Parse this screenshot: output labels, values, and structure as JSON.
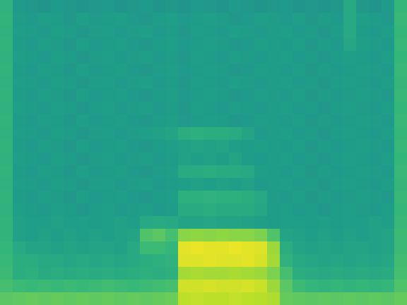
{
  "chart_data": {
    "type": "heatmap",
    "tick_labels": false,
    "zlim": [
      0,
      1
    ],
    "cells": [
      [
        0.64,
        0.54,
        0.53,
        0.52,
        0.54,
        0.53,
        0.52,
        0.53,
        0.54,
        0.52,
        0.53,
        0.54,
        0.52,
        0.53,
        0.52,
        0.54,
        0.53,
        0.52,
        0.54,
        0.53,
        0.52,
        0.53,
        0.54,
        0.52,
        0.53,
        0.52,
        0.53,
        0.6,
        0.53,
        0.52,
        0.54,
        0.66
      ],
      [
        0.65,
        0.55,
        0.54,
        0.56,
        0.55,
        0.53,
        0.56,
        0.54,
        0.55,
        0.56,
        0.54,
        0.53,
        0.55,
        0.56,
        0.54,
        0.55,
        0.56,
        0.55,
        0.53,
        0.54,
        0.56,
        0.55,
        0.54,
        0.56,
        0.53,
        0.55,
        0.54,
        0.6,
        0.56,
        0.55,
        0.54,
        0.67
      ],
      [
        0.64,
        0.56,
        0.55,
        0.54,
        0.56,
        0.55,
        0.53,
        0.55,
        0.56,
        0.54,
        0.55,
        0.56,
        0.54,
        0.55,
        0.53,
        0.56,
        0.55,
        0.54,
        0.56,
        0.55,
        0.54,
        0.55,
        0.56,
        0.54,
        0.55,
        0.53,
        0.55,
        0.6,
        0.55,
        0.54,
        0.56,
        0.66
      ],
      [
        0.65,
        0.55,
        0.54,
        0.56,
        0.55,
        0.53,
        0.56,
        0.54,
        0.55,
        0.56,
        0.54,
        0.53,
        0.55,
        0.56,
        0.54,
        0.55,
        0.56,
        0.55,
        0.53,
        0.54,
        0.56,
        0.55,
        0.54,
        0.56,
        0.53,
        0.55,
        0.54,
        0.59,
        0.56,
        0.55,
        0.54,
        0.67
      ],
      [
        0.64,
        0.56,
        0.55,
        0.54,
        0.56,
        0.55,
        0.53,
        0.55,
        0.56,
        0.54,
        0.55,
        0.56,
        0.54,
        0.55,
        0.53,
        0.56,
        0.55,
        0.54,
        0.56,
        0.55,
        0.54,
        0.55,
        0.56,
        0.54,
        0.55,
        0.53,
        0.55,
        0.56,
        0.55,
        0.54,
        0.56,
        0.66
      ],
      [
        0.65,
        0.55,
        0.54,
        0.56,
        0.55,
        0.53,
        0.56,
        0.54,
        0.55,
        0.56,
        0.54,
        0.53,
        0.55,
        0.56,
        0.54,
        0.55,
        0.56,
        0.55,
        0.53,
        0.54,
        0.56,
        0.55,
        0.54,
        0.56,
        0.53,
        0.55,
        0.54,
        0.55,
        0.56,
        0.55,
        0.54,
        0.67
      ],
      [
        0.64,
        0.56,
        0.55,
        0.54,
        0.56,
        0.55,
        0.53,
        0.55,
        0.56,
        0.54,
        0.55,
        0.56,
        0.54,
        0.55,
        0.53,
        0.56,
        0.55,
        0.54,
        0.56,
        0.55,
        0.54,
        0.55,
        0.56,
        0.54,
        0.55,
        0.53,
        0.55,
        0.56,
        0.55,
        0.54,
        0.56,
        0.66
      ],
      [
        0.65,
        0.55,
        0.54,
        0.56,
        0.55,
        0.53,
        0.56,
        0.54,
        0.55,
        0.56,
        0.54,
        0.53,
        0.55,
        0.56,
        0.54,
        0.55,
        0.56,
        0.55,
        0.53,
        0.54,
        0.56,
        0.55,
        0.54,
        0.56,
        0.53,
        0.55,
        0.54,
        0.55,
        0.56,
        0.55,
        0.54,
        0.67
      ],
      [
        0.64,
        0.56,
        0.55,
        0.54,
        0.56,
        0.55,
        0.53,
        0.55,
        0.56,
        0.54,
        0.55,
        0.56,
        0.54,
        0.55,
        0.53,
        0.56,
        0.55,
        0.54,
        0.56,
        0.55,
        0.54,
        0.55,
        0.56,
        0.54,
        0.55,
        0.53,
        0.55,
        0.56,
        0.55,
        0.54,
        0.56,
        0.66
      ],
      [
        0.65,
        0.55,
        0.54,
        0.56,
        0.55,
        0.53,
        0.56,
        0.54,
        0.55,
        0.56,
        0.54,
        0.53,
        0.55,
        0.56,
        0.54,
        0.55,
        0.56,
        0.55,
        0.53,
        0.54,
        0.56,
        0.55,
        0.54,
        0.56,
        0.53,
        0.55,
        0.54,
        0.55,
        0.56,
        0.55,
        0.54,
        0.67
      ],
      [
        0.64,
        0.56,
        0.55,
        0.54,
        0.56,
        0.55,
        0.53,
        0.55,
        0.56,
        0.54,
        0.55,
        0.56,
        0.57,
        0.58,
        0.62,
        0.63,
        0.62,
        0.62,
        0.61,
        0.58,
        0.54,
        0.55,
        0.56,
        0.54,
        0.55,
        0.53,
        0.55,
        0.56,
        0.55,
        0.54,
        0.56,
        0.66
      ],
      [
        0.65,
        0.55,
        0.54,
        0.56,
        0.55,
        0.53,
        0.56,
        0.54,
        0.55,
        0.56,
        0.54,
        0.53,
        0.55,
        0.56,
        0.57,
        0.58,
        0.57,
        0.58,
        0.56,
        0.55,
        0.56,
        0.55,
        0.54,
        0.56,
        0.53,
        0.55,
        0.54,
        0.55,
        0.56,
        0.55,
        0.54,
        0.67
      ],
      [
        0.64,
        0.56,
        0.55,
        0.54,
        0.56,
        0.55,
        0.53,
        0.55,
        0.56,
        0.54,
        0.55,
        0.56,
        0.54,
        0.55,
        0.57,
        0.56,
        0.57,
        0.56,
        0.58,
        0.55,
        0.54,
        0.55,
        0.56,
        0.54,
        0.55,
        0.53,
        0.55,
        0.56,
        0.55,
        0.54,
        0.56,
        0.66
      ],
      [
        0.65,
        0.55,
        0.54,
        0.56,
        0.55,
        0.53,
        0.56,
        0.54,
        0.55,
        0.56,
        0.54,
        0.53,
        0.55,
        0.56,
        0.61,
        0.61,
        0.62,
        0.61,
        0.61,
        0.6,
        0.56,
        0.55,
        0.54,
        0.56,
        0.53,
        0.55,
        0.54,
        0.55,
        0.56,
        0.55,
        0.54,
        0.67
      ],
      [
        0.64,
        0.56,
        0.55,
        0.54,
        0.56,
        0.55,
        0.53,
        0.55,
        0.56,
        0.54,
        0.55,
        0.56,
        0.54,
        0.55,
        0.56,
        0.57,
        0.56,
        0.57,
        0.56,
        0.57,
        0.54,
        0.55,
        0.56,
        0.54,
        0.55,
        0.53,
        0.55,
        0.56,
        0.55,
        0.54,
        0.56,
        0.66
      ],
      [
        0.65,
        0.55,
        0.54,
        0.56,
        0.55,
        0.53,
        0.56,
        0.54,
        0.55,
        0.56,
        0.54,
        0.53,
        0.55,
        0.56,
        0.63,
        0.63,
        0.64,
        0.63,
        0.63,
        0.62,
        0.6,
        0.55,
        0.54,
        0.56,
        0.53,
        0.55,
        0.54,
        0.55,
        0.56,
        0.55,
        0.54,
        0.67
      ],
      [
        0.64,
        0.56,
        0.55,
        0.54,
        0.56,
        0.55,
        0.53,
        0.55,
        0.56,
        0.54,
        0.55,
        0.56,
        0.54,
        0.55,
        0.61,
        0.61,
        0.62,
        0.61,
        0.61,
        0.61,
        0.59,
        0.55,
        0.56,
        0.54,
        0.55,
        0.53,
        0.55,
        0.56,
        0.55,
        0.54,
        0.56,
        0.66
      ],
      [
        0.65,
        0.57,
        0.56,
        0.56,
        0.57,
        0.56,
        0.56,
        0.55,
        0.56,
        0.57,
        0.56,
        0.6,
        0.61,
        0.6,
        0.58,
        0.58,
        0.59,
        0.58,
        0.58,
        0.57,
        0.56,
        0.55,
        0.56,
        0.56,
        0.55,
        0.56,
        0.55,
        0.56,
        0.56,
        0.57,
        0.56,
        0.67
      ],
      [
        0.65,
        0.57,
        0.56,
        0.57,
        0.56,
        0.57,
        0.56,
        0.57,
        0.56,
        0.57,
        0.58,
        0.72,
        0.74,
        0.7,
        0.82,
        0.83,
        0.82,
        0.83,
        0.82,
        0.82,
        0.8,
        0.72,
        0.58,
        0.57,
        0.56,
        0.57,
        0.56,
        0.57,
        0.56,
        0.57,
        0.58,
        0.68
      ],
      [
        0.66,
        0.6,
        0.58,
        0.58,
        0.57,
        0.58,
        0.57,
        0.58,
        0.58,
        0.57,
        0.6,
        0.68,
        0.68,
        0.66,
        0.96,
        0.97,
        0.96,
        0.96,
        0.97,
        0.96,
        0.95,
        0.85,
        0.62,
        0.58,
        0.57,
        0.58,
        0.57,
        0.58,
        0.58,
        0.57,
        0.58,
        0.68
      ],
      [
        0.67,
        0.62,
        0.62,
        0.6,
        0.6,
        0.59,
        0.6,
        0.59,
        0.6,
        0.59,
        0.6,
        0.62,
        0.63,
        0.64,
        0.95,
        0.95,
        0.96,
        0.95,
        0.95,
        0.96,
        0.94,
        0.86,
        0.64,
        0.6,
        0.59,
        0.58,
        0.59,
        0.58,
        0.59,
        0.58,
        0.59,
        0.69
      ],
      [
        0.68,
        0.62,
        0.63,
        0.61,
        0.62,
        0.61,
        0.62,
        0.61,
        0.62,
        0.61,
        0.62,
        0.63,
        0.62,
        0.63,
        0.86,
        0.87,
        0.86,
        0.86,
        0.87,
        0.86,
        0.85,
        0.8,
        0.7,
        0.62,
        0.61,
        0.6,
        0.61,
        0.6,
        0.61,
        0.6,
        0.61,
        0.7
      ],
      [
        0.7,
        0.68,
        0.67,
        0.68,
        0.67,
        0.68,
        0.67,
        0.68,
        0.69,
        0.68,
        0.67,
        0.68,
        0.69,
        0.7,
        0.93,
        0.93,
        0.94,
        0.93,
        0.93,
        0.94,
        0.92,
        0.85,
        0.74,
        0.68,
        0.66,
        0.65,
        0.66,
        0.65,
        0.66,
        0.65,
        0.66,
        0.72
      ],
      [
        0.74,
        0.75,
        0.76,
        0.75,
        0.76,
        0.75,
        0.76,
        0.75,
        0.76,
        0.75,
        0.76,
        0.75,
        0.76,
        0.77,
        0.9,
        0.91,
        0.9,
        0.9,
        0.91,
        0.9,
        0.89,
        0.88,
        0.76,
        0.75,
        0.74,
        0.75,
        0.74,
        0.75,
        0.74,
        0.75,
        0.74,
        0.76
      ]
    ]
  }
}
